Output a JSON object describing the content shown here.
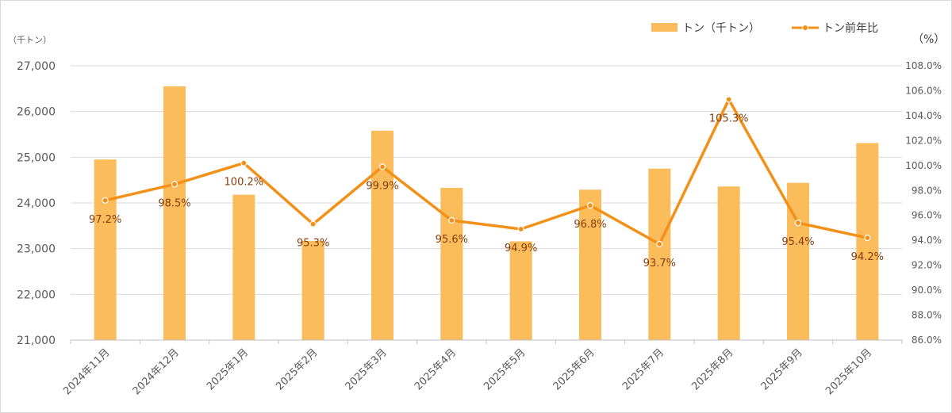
{
  "chart_data": {
    "type": "bar",
    "categories": [
      "2024年11月",
      "2024年12月",
      "2025年1月",
      "2025年2月",
      "2025年3月",
      "2025年4月",
      "2025年5月",
      "2025年6月",
      "2025年7月",
      "2025年8月",
      "2025年9月",
      "2025年10月"
    ],
    "series": [
      {
        "name": "トン（千トン）",
        "type": "bar",
        "axis": "left",
        "values": [
          24950,
          26550,
          24180,
          23170,
          25580,
          24330,
          23160,
          24290,
          24750,
          24360,
          24440,
          25310
        ]
      },
      {
        "name": "トン前年比",
        "type": "line",
        "axis": "right",
        "values": [
          97.2,
          98.5,
          100.2,
          95.3,
          99.9,
          95.6,
          94.9,
          96.8,
          93.7,
          105.3,
          95.4,
          94.2
        ],
        "labels": [
          "97.2%",
          "98.5%",
          "100.2%",
          "95.3%",
          "99.9%",
          "95.6%",
          "94.9%",
          "96.8%",
          "93.7%",
          "105.3%",
          "95.4%",
          "94.2%"
        ]
      }
    ],
    "y_left": {
      "unit": "（千トン）",
      "min": 21000,
      "max": 27000,
      "step": 1000,
      "ticks": [
        "21,000",
        "22,000",
        "23,000",
        "24,000",
        "25,000",
        "26,000",
        "27,000"
      ]
    },
    "y_right": {
      "unit": "（%）",
      "min": 86.0,
      "max": 108.0,
      "step": 2.0,
      "ticks": [
        "86.0%",
        "88.0%",
        "90.0%",
        "92.0%",
        "94.0%",
        "96.0%",
        "98.0%",
        "100.0%",
        "102.0%",
        "104.0%",
        "106.0%",
        "108.0%"
      ]
    },
    "grid": true,
    "legend_position": "top-right"
  },
  "colors": {
    "bar": "#fbbc5c",
    "line": "#f39018",
    "grid": "#d9d9d9",
    "label": "#843c0c"
  }
}
